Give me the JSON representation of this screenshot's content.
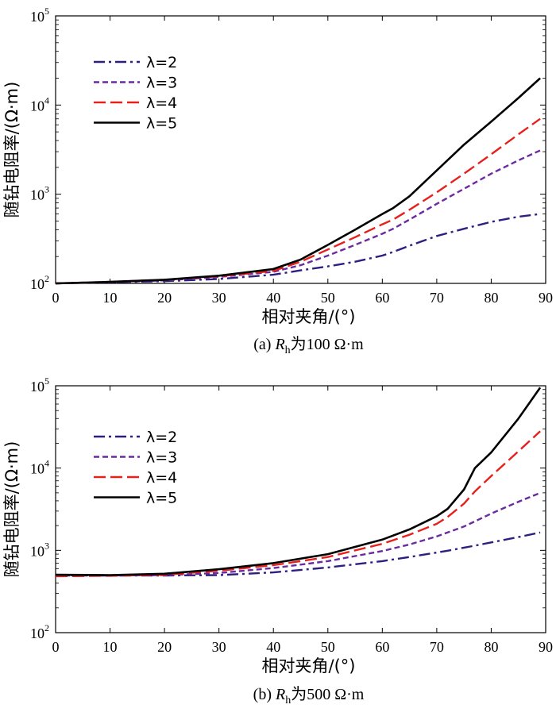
{
  "colors": {
    "lambda2": "#2c1f80",
    "lambda3": "#6a2aa0",
    "lambda4": "#e8201c",
    "lambda5": "#000000"
  },
  "chart_data": [
    {
      "type": "line",
      "caption": "(a) Rₕ为100 Ω·m",
      "caption_parts": {
        "prefix": "(a) ",
        "var": "R",
        "sub": "h",
        "suffix": "为100 Ω·m"
      },
      "xlabel": "相对夹角/(°)",
      "ylabel": "随钻电阻率/(Ω·m)",
      "xlim": [
        0,
        90
      ],
      "ylim": [
        100,
        100000
      ],
      "yscale": "log",
      "x_ticks": [
        0,
        10,
        20,
        30,
        40,
        50,
        60,
        70,
        80,
        90
      ],
      "y_ticks": [
        {
          "base": "10",
          "exp": "2",
          "value": 100
        },
        {
          "base": "10",
          "exp": "3",
          "value": 1000
        },
        {
          "base": "10",
          "exp": "4",
          "value": 10000
        },
        {
          "base": "10",
          "exp": "5",
          "value": 100000
        }
      ],
      "legend_position": "top-left",
      "x": [
        0,
        10,
        20,
        30,
        40,
        45,
        50,
        55,
        60,
        62,
        65,
        70,
        75,
        80,
        85,
        89
      ],
      "series": [
        {
          "name": "λ=2",
          "color_key": "lambda2",
          "dash": "dashdot",
          "values": [
            100,
            103,
            106,
            112,
            125,
            140,
            155,
            175,
            205,
            225,
            265,
            340,
            410,
            490,
            560,
            600
          ]
        },
        {
          "name": "λ=3",
          "color_key": "lambda3",
          "dash": "short",
          "values": [
            100,
            103,
            108,
            118,
            135,
            160,
            205,
            270,
            360,
            410,
            520,
            780,
            1150,
            1700,
            2400,
            3100
          ]
        },
        {
          "name": "λ=4",
          "color_key": "lambda4",
          "dash": "long",
          "values": [
            100,
            104,
            110,
            120,
            138,
            175,
            240,
            330,
            460,
            520,
            670,
            1050,
            1700,
            2800,
            4700,
            7000
          ]
        },
        {
          "name": "λ=5",
          "color_key": "lambda5",
          "dash": "solid",
          "values": [
            100,
            104,
            110,
            122,
            145,
            185,
            270,
            400,
            600,
            700,
            950,
            1850,
            3600,
            6500,
            12000,
            20000
          ]
        }
      ]
    },
    {
      "type": "line",
      "caption": "(b) Rₕ为500 Ω·m",
      "caption_parts": {
        "prefix": "(b) ",
        "var": "R",
        "sub": "h",
        "suffix": "为500 Ω·m"
      },
      "xlabel": "相对夹角/(°)",
      "ylabel": "随钻电阻率/(Ω·m)",
      "xlim": [
        0,
        90
      ],
      "ylim": [
        100,
        100000
      ],
      "yscale": "log",
      "x_ticks": [
        0,
        10,
        20,
        30,
        40,
        50,
        60,
        70,
        80,
        90
      ],
      "y_ticks": [
        {
          "base": "10",
          "exp": "2",
          "value": 100
        },
        {
          "base": "10",
          "exp": "3",
          "value": 1000
        },
        {
          "base": "10",
          "exp": "4",
          "value": 10000
        },
        {
          "base": "10",
          "exp": "5",
          "value": 100000
        }
      ],
      "legend_position": "top-left",
      "x": [
        0,
        10,
        20,
        30,
        40,
        50,
        60,
        65,
        70,
        72,
        75,
        77,
        80,
        85,
        89
      ],
      "series": [
        {
          "name": "λ=2",
          "color_key": "lambda2",
          "dash": "dashdot",
          "values": [
            500,
            495,
            495,
            500,
            540,
            620,
            740,
            830,
            940,
            990,
            1080,
            1140,
            1250,
            1450,
            1650
          ]
        },
        {
          "name": "λ=3",
          "color_key": "lambda3",
          "dash": "short",
          "values": [
            495,
            495,
            500,
            530,
            610,
            740,
            980,
            1180,
            1480,
            1650,
            1950,
            2250,
            2800,
            3900,
            5000
          ]
        },
        {
          "name": "λ=4",
          "color_key": "lambda4",
          "dash": "long",
          "values": [
            485,
            490,
            505,
            565,
            660,
            830,
            1200,
            1550,
            2100,
            2550,
            3700,
            5200,
            8000,
            16000,
            28000
          ]
        },
        {
          "name": "λ=5",
          "color_key": "lambda5",
          "dash": "solid",
          "values": [
            505,
            500,
            520,
            590,
            700,
            900,
            1350,
            1800,
            2600,
            3200,
            5500,
            10000,
            15500,
            40000,
            95000
          ]
        }
      ]
    }
  ]
}
